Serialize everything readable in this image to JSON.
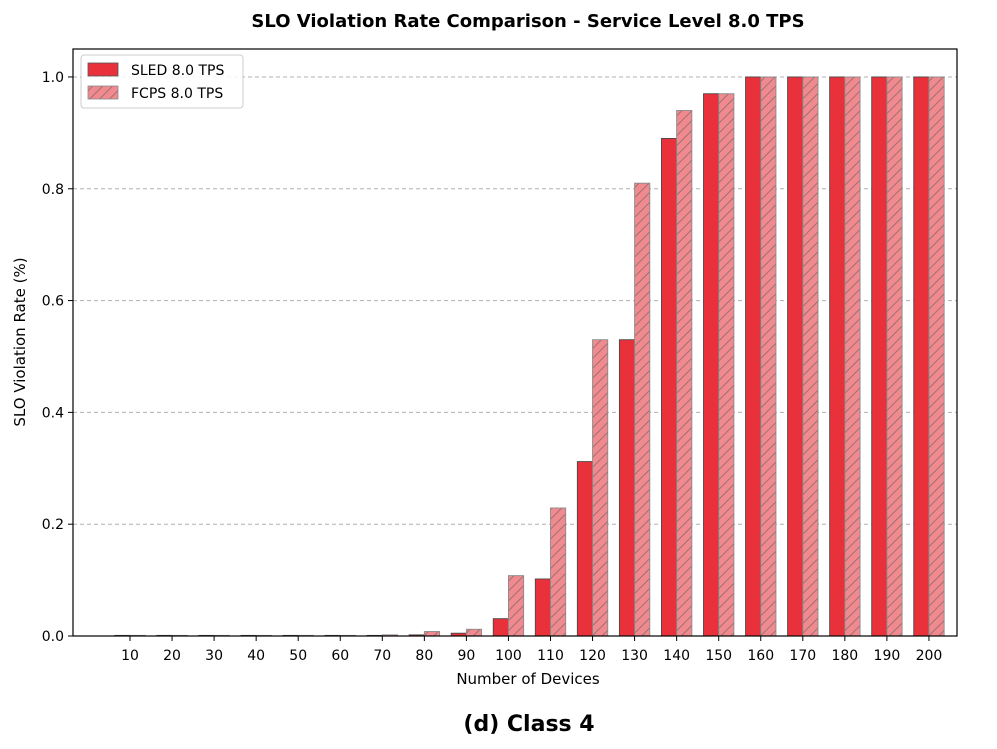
{
  "chart_data": {
    "type": "bar",
    "title": "SLO Violation Rate Comparison - Service Level 8.0 TPS",
    "xlabel": "Number of Devices",
    "ylabel": "SLO Violation Rate (%)",
    "caption": "(d) Class 4",
    "ylim": [
      0,
      1.05
    ],
    "yticks": [
      "0.0",
      "0.2",
      "0.4",
      "0.6",
      "0.8",
      "1.0"
    ],
    "categories": [
      "10",
      "20",
      "30",
      "40",
      "50",
      "60",
      "70",
      "80",
      "90",
      "100",
      "110",
      "120",
      "130",
      "140",
      "150",
      "160",
      "170",
      "180",
      "190",
      "200"
    ],
    "grid": "y-dashed",
    "legend_position": "top-left",
    "series": [
      {
        "name": "SLED 8.0 TPS",
        "color": "#e8313a",
        "hatch": false,
        "values": [
          0,
          0,
          0,
          0,
          0,
          0,
          0,
          0.002,
          0.005,
          0.031,
          0.102,
          0.312,
          0.53,
          0.89,
          0.97,
          1.0,
          1.0,
          1.0,
          1.0,
          1.0
        ]
      },
      {
        "name": "FCPS 8.0 TPS",
        "color": "#f08a8e",
        "hatch": true,
        "values": [
          0,
          0.001,
          0,
          0,
          0,
          0.001,
          0.002,
          0.008,
          0.012,
          0.108,
          0.229,
          0.53,
          0.81,
          0.94,
          0.97,
          1.0,
          1.0,
          1.0,
          1.0,
          1.0
        ]
      }
    ]
  }
}
